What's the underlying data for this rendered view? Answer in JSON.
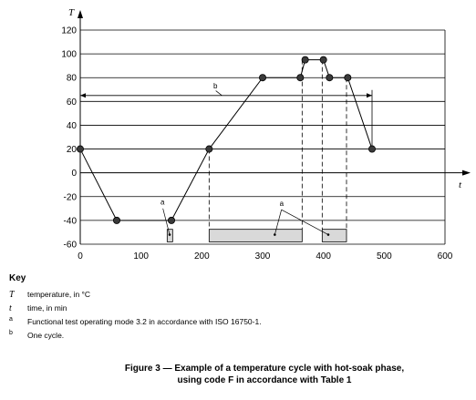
{
  "chart_data": {
    "type": "line",
    "x_axis_symbol": "t",
    "y_axis_symbol": "T",
    "xlim": [
      0,
      600
    ],
    "ylim": [
      -60,
      120
    ],
    "x_ticks": [
      0,
      100,
      200,
      300,
      400,
      500,
      600
    ],
    "y_ticks": [
      120,
      100,
      80,
      60,
      40,
      20,
      0,
      -20,
      -40,
      -60
    ],
    "grid": "horizontal",
    "series": [
      {
        "x": [
          0,
          60,
          150,
          212,
          300,
          362,
          370,
          400,
          410,
          440,
          480
        ],
        "y": [
          20,
          -40,
          -40,
          20,
          80,
          80,
          95,
          95,
          80,
          80,
          20
        ]
      }
    ],
    "operating_periods": [
      {
        "x_start": 143,
        "x_end": 152
      },
      {
        "x_start": 212,
        "x_end": 365
      },
      {
        "x_start": 398,
        "x_end": 438
      }
    ],
    "cycle_span": {
      "x_start": 0,
      "x_end": 480,
      "y": 65,
      "label": "b"
    },
    "period_label": "a"
  },
  "key": {
    "title": "Key",
    "rows": [
      {
        "symbol": "T",
        "text": "temperature, in °C"
      },
      {
        "symbol": "t",
        "text": "time, in min"
      },
      {
        "symbol": "a",
        "text": "Functional test operating mode 3.2 in accordance with ISO 16750-1."
      },
      {
        "symbol": "b",
        "text": "One cycle."
      }
    ]
  },
  "caption": {
    "line1": "Figure 3 — Example of a temperature cycle with hot-soak phase,",
    "line2": "using code F in accordance with Table 1"
  }
}
